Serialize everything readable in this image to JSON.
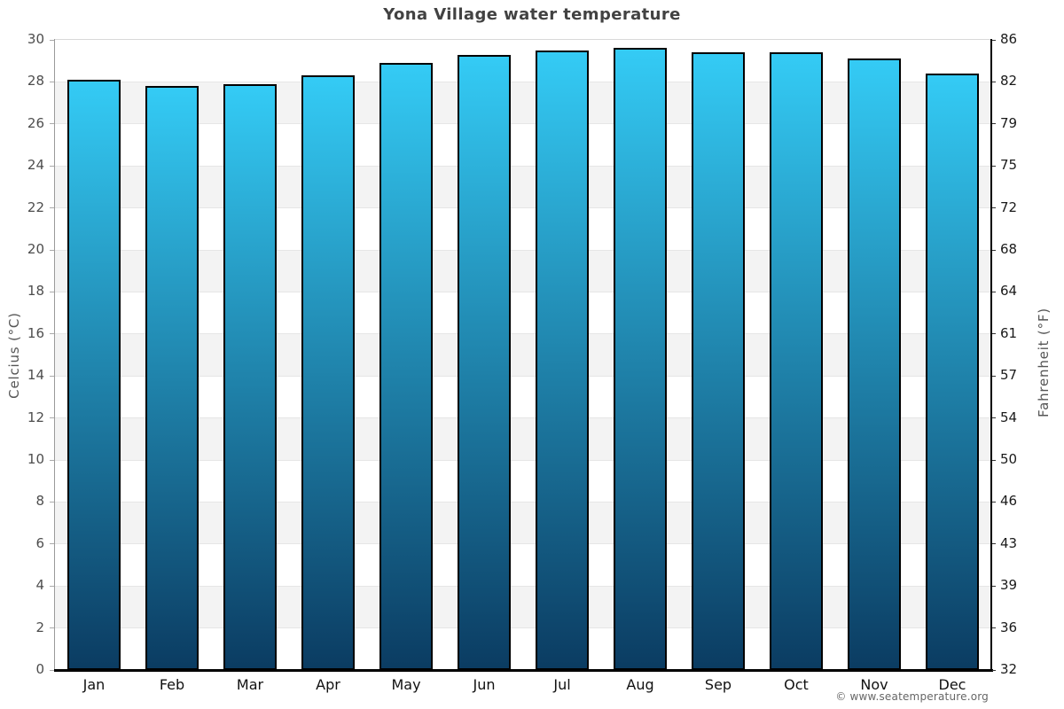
{
  "title": "Yona Village water temperature",
  "y_axis": {
    "title": "Celcius (°C)"
  },
  "y2_axis": {
    "title": "Fahrenheit (°F)"
  },
  "footer": {
    "copyright": "© www.seatemperature.org"
  },
  "chart_data": {
    "type": "bar",
    "title": "Yona Village water temperature",
    "categories": [
      "Jan",
      "Feb",
      "Mar",
      "Apr",
      "May",
      "Jun",
      "Jul",
      "Aug",
      "Sep",
      "Oct",
      "Nov",
      "Dec"
    ],
    "values": [
      28.1,
      27.8,
      27.9,
      28.3,
      28.9,
      29.3,
      29.5,
      29.6,
      29.4,
      29.4,
      29.1,
      28.4
    ],
    "unit": "°C",
    "xlabel": "",
    "ylabel": "Celcius (°C)",
    "y2label": "Fahrenheit (°F)",
    "ylim": [
      0,
      30
    ],
    "ytick_step": 2,
    "left_ticks": [
      0,
      2,
      4,
      6,
      8,
      10,
      12,
      14,
      16,
      18,
      20,
      22,
      24,
      26,
      28,
      30
    ],
    "left_tick_labels": [
      "0",
      "2",
      "4",
      "6",
      "8",
      "10",
      "12",
      "14",
      "16",
      "18",
      "20",
      "22",
      "24",
      "26",
      "28",
      "30"
    ],
    "right_tick_labels": [
      "32",
      "36",
      "39",
      "43",
      "46",
      "50",
      "54",
      "57",
      "61",
      "64",
      "68",
      "72",
      "75",
      "79",
      "82",
      "86"
    ],
    "grid": "alternating-horizontal-bands",
    "legend": "none",
    "colors": {
      "bar_gradient_top": "#34cbf5",
      "bar_gradient_bottom": "#0b3c62",
      "bar_border": "#000000",
      "band": "#f3f3f3",
      "gridline": "#e6e6e6",
      "plot_top_border": "#d9d9d9",
      "axis_left": "#9a9a9a",
      "axis_right": "#000000",
      "axis_bottom": "#000000",
      "tick_left": "#aaaaaa",
      "tick_right": "#333333"
    }
  }
}
